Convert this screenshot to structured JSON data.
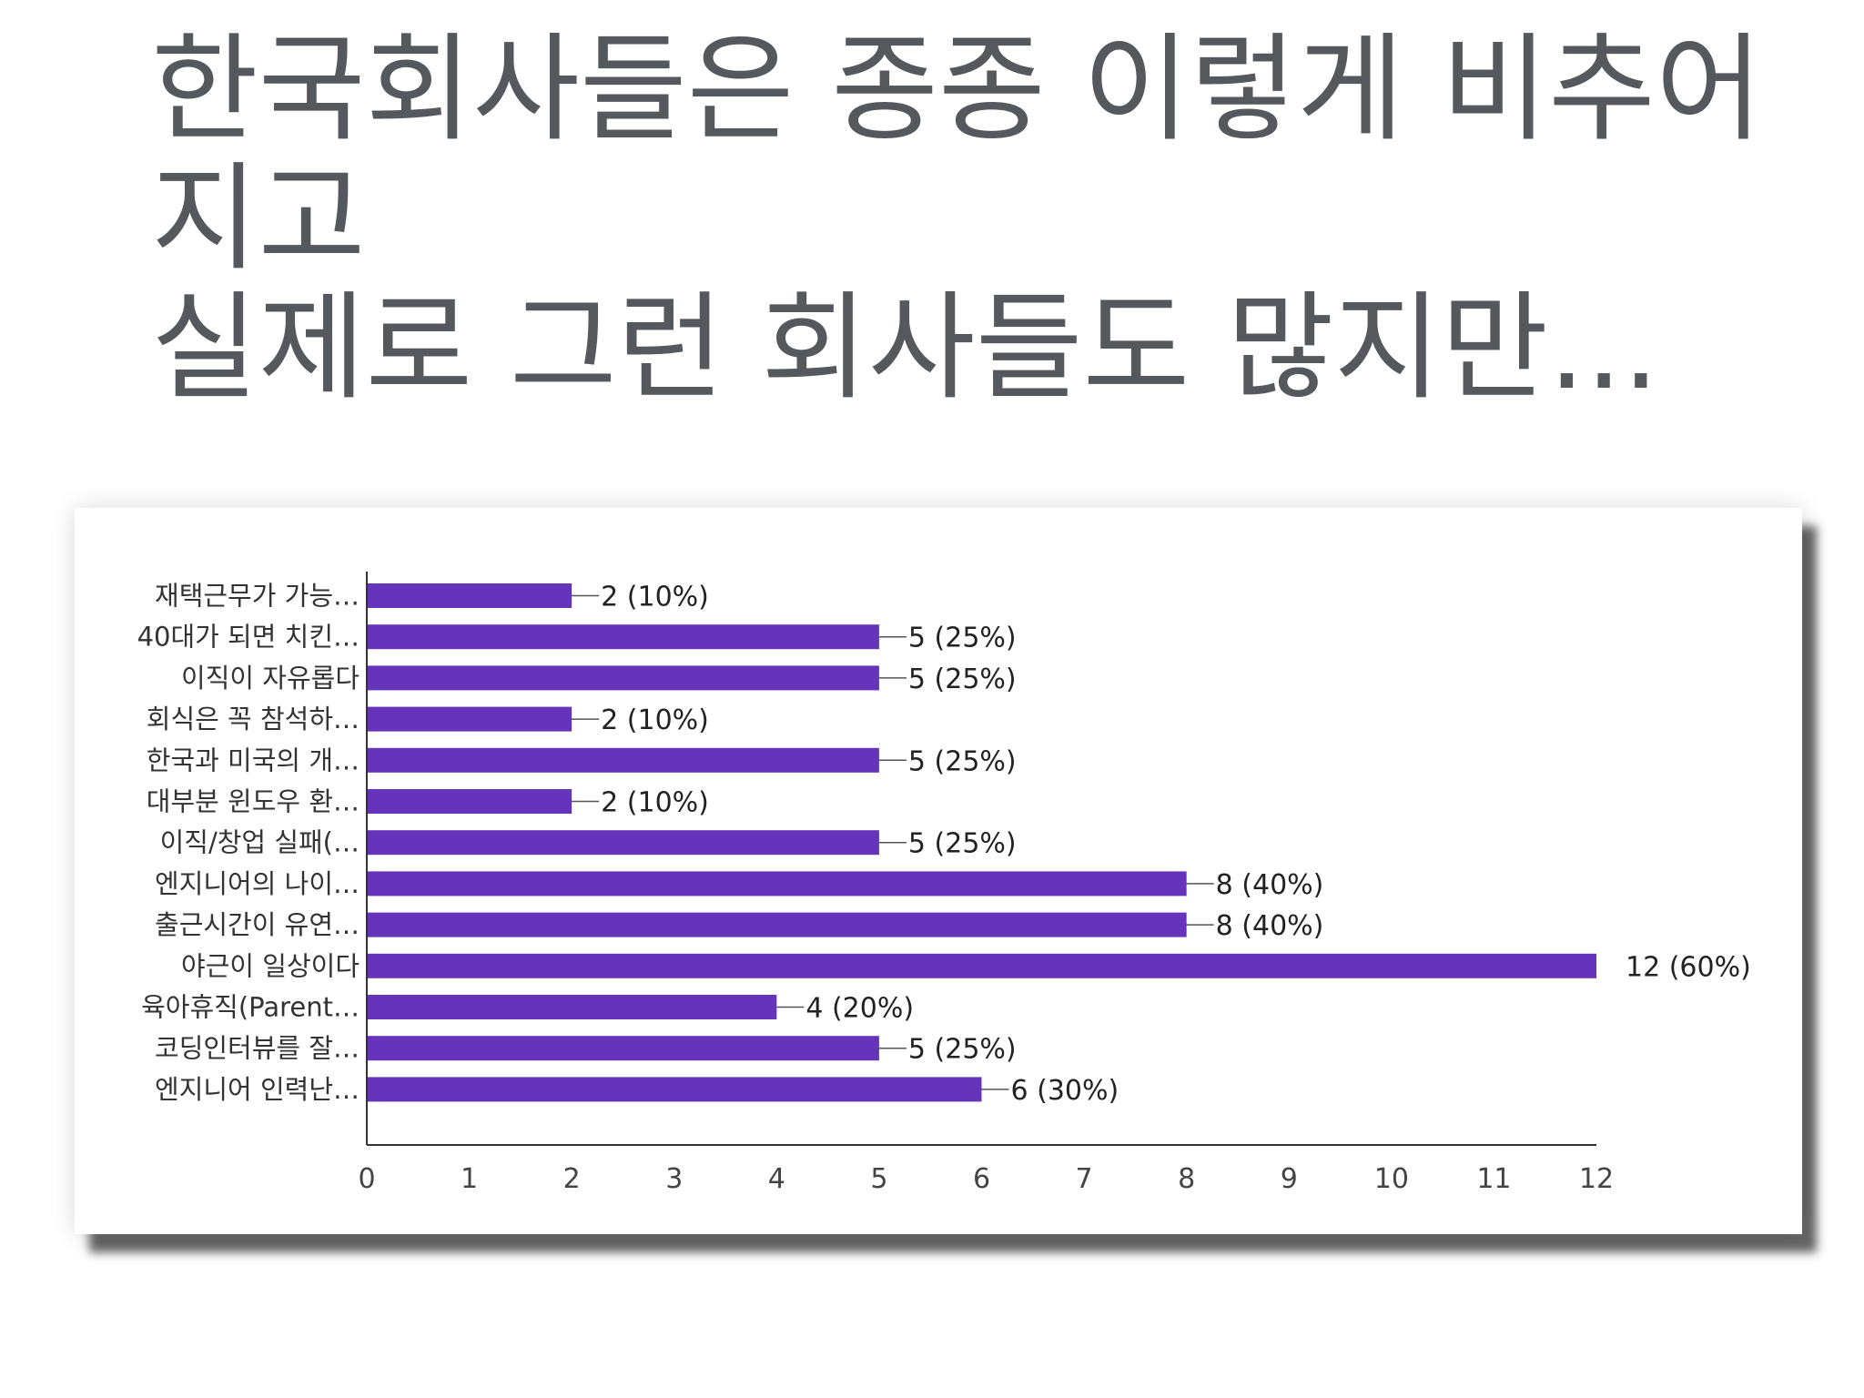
{
  "slide": {
    "title_lines": [
      "한국회사들은 종종 이렇게 비추어",
      "지고",
      "실제로 그런 회사들도 많지만..."
    ]
  },
  "colors": {
    "title": "#55595e",
    "bar": "#6633bb",
    "axis": "#333333",
    "background": "#ffffff"
  },
  "chart_data": {
    "type": "bar",
    "orientation": "horizontal",
    "title": "",
    "xlabel": "",
    "ylabel": "",
    "xlim": [
      0,
      12
    ],
    "x_ticks": [
      0,
      1,
      2,
      3,
      4,
      5,
      6,
      7,
      8,
      9,
      10,
      11,
      12
    ],
    "grid": false,
    "legend": "none",
    "categories": [
      "재택근무가 가능…",
      "40대가 되면 치킨…",
      "이직이 자유롭다",
      "회식은 꼭 참석하…",
      "한국과 미국의 개…",
      "대부분 윈도우 환…",
      "이직/창업 실패(…",
      "엔지니어의 나이…",
      "출근시간이 유연…",
      "야근이 일상이다",
      "육아휴직(Parent…",
      "코딩인터뷰를 잘…",
      "엔지니어 인력난…"
    ],
    "values": [
      2,
      5,
      5,
      2,
      5,
      2,
      5,
      8,
      8,
      12,
      4,
      5,
      6
    ],
    "data_labels": [
      "2 (10%)",
      "5 (25%)",
      "5 (25%)",
      "2 (10%)",
      "5 (25%)",
      "2 (10%)",
      "5 (25%)",
      "8 (40%)",
      "8 (40%)",
      "12 (60%)",
      "4 (20%)",
      "5 (25%)",
      "6 (30%)"
    ]
  }
}
